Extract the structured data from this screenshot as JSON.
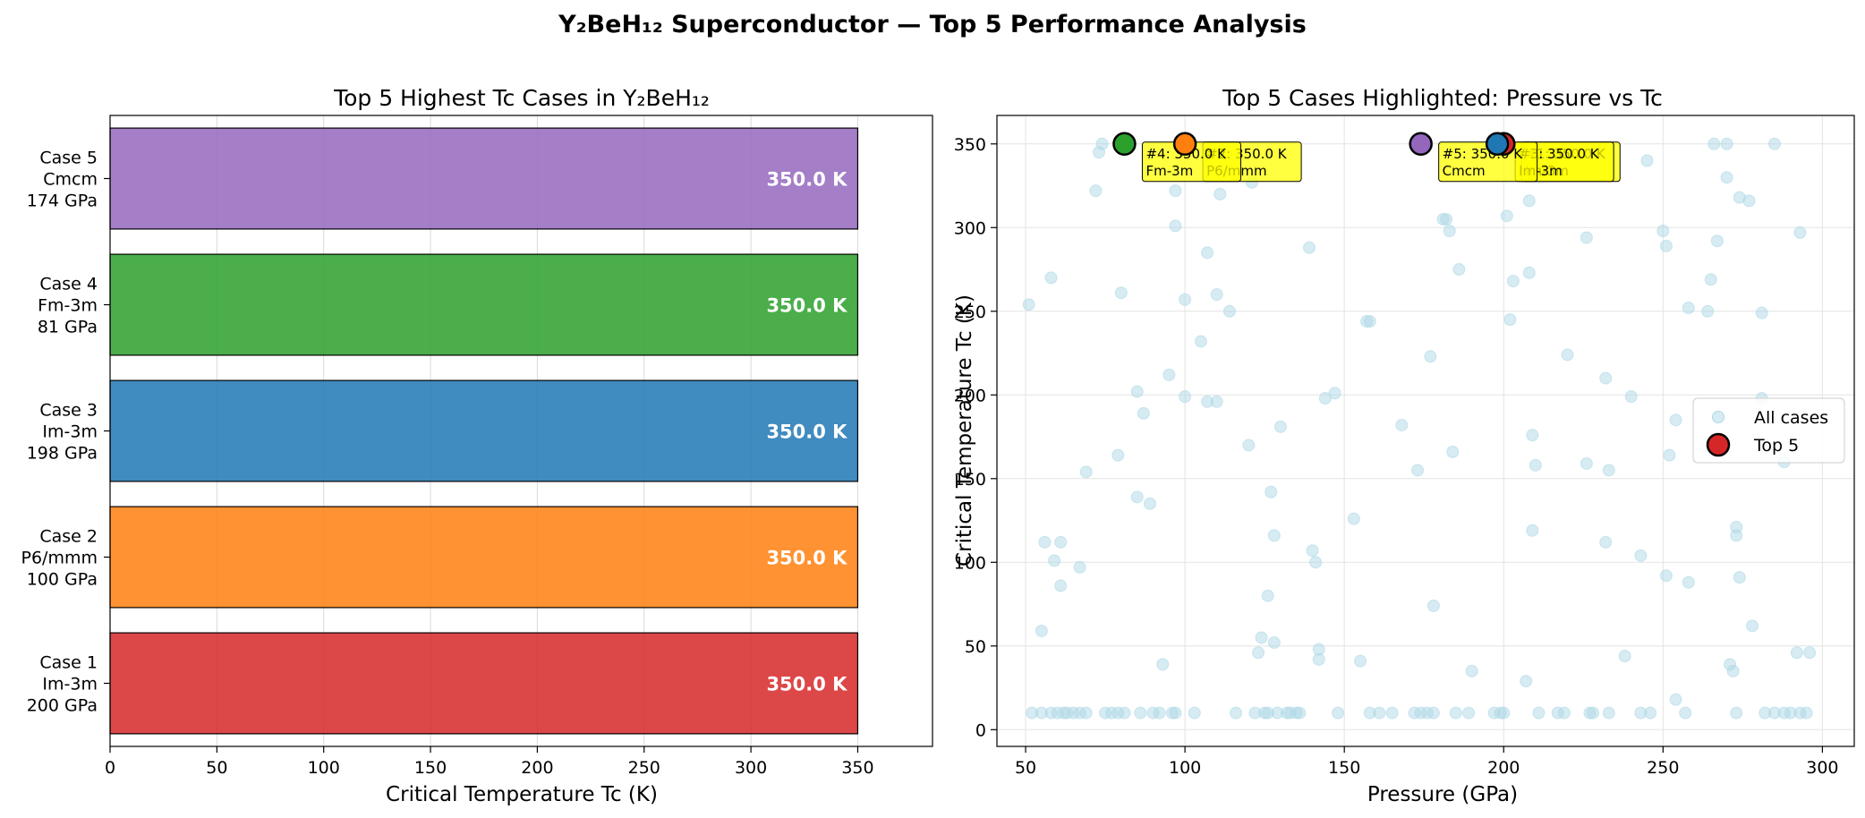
{
  "figure_title": "Y₂BeH₁₂ Superconductor — Top 5 Performance Analysis",
  "chart_data": [
    {
      "type": "bar",
      "orientation": "horizontal",
      "title": "Top 5 Highest Tc Cases in Y₂BeH₁₂",
      "xlabel": "Critical Temperature Tc (K)",
      "ylabel": "",
      "xlim": [
        0,
        385
      ],
      "xticks": [
        0,
        50,
        100,
        150,
        200,
        250,
        300,
        350
      ],
      "grid": "x",
      "categories": [
        [
          "Case 1",
          "Im-3m",
          "200 GPa"
        ],
        [
          "Case 2",
          "P6/mmm",
          "100 GPa"
        ],
        [
          "Case 3",
          "Im-3m",
          "198 GPa"
        ],
        [
          "Case 4",
          "Fm-3m",
          "81 GPa"
        ],
        [
          "Case 5",
          "Cmcm",
          "174 GPa"
        ]
      ],
      "values": [
        350.0,
        350.0,
        350.0,
        350.0,
        350.0
      ],
      "value_labels": [
        "350.0 K",
        "350.0 K",
        "350.0 K",
        "350.0 K",
        "350.0 K"
      ],
      "colors": [
        "#d62728",
        "#ff7f0e",
        "#1f77b4",
        "#2ca02c",
        "#9467bd"
      ]
    },
    {
      "type": "scatter",
      "title": "Top 5 Cases Highlighted: Pressure vs Tc",
      "xlabel": "Pressure (GPa)",
      "ylabel": "Critical Temperature Tc (K)",
      "xlim": [
        41,
        310
      ],
      "ylim": [
        -10,
        367
      ],
      "xticks": [
        50,
        100,
        150,
        200,
        250,
        300
      ],
      "yticks": [
        0,
        50,
        100,
        150,
        200,
        250,
        300,
        350
      ],
      "grid": true,
      "legend_position": "center-right",
      "series": [
        {
          "name": "All cases",
          "color": "#add8e6",
          "points": [
            [
              51,
              254
            ],
            [
              55,
              59
            ],
            [
              56,
              112
            ],
            [
              58,
              270
            ],
            [
              59,
              101
            ],
            [
              61,
              86
            ],
            [
              61,
              112
            ],
            [
              67,
              97
            ],
            [
              69,
              154
            ],
            [
              72,
              322
            ],
            [
              73,
              345
            ],
            [
              74,
              350
            ],
            [
              79,
              164
            ],
            [
              80,
              261
            ],
            [
              85,
              139
            ],
            [
              85,
              202
            ],
            [
              87,
              189
            ],
            [
              89,
              135
            ],
            [
              93,
              39
            ],
            [
              95,
              212
            ],
            [
              97,
              301
            ],
            [
              97,
              322
            ],
            [
              100,
              199
            ],
            [
              100,
              257
            ],
            [
              105,
              232
            ],
            [
              107,
              196
            ],
            [
              107,
              285
            ],
            [
              110,
              196
            ],
            [
              110,
              260
            ],
            [
              111,
              320
            ],
            [
              114,
              250
            ],
            [
              120,
              170
            ],
            [
              121,
              327
            ],
            [
              123,
              46
            ],
            [
              124,
              55
            ],
            [
              126,
              80
            ],
            [
              127,
              142
            ],
            [
              128,
              116
            ],
            [
              128,
              52
            ],
            [
              130,
              181
            ],
            [
              139,
              288
            ],
            [
              140,
              107
            ],
            [
              141,
              100
            ],
            [
              142,
              42
            ],
            [
              142,
              48
            ],
            [
              144,
              198
            ],
            [
              147,
              201
            ],
            [
              153,
              126
            ],
            [
              155,
              41
            ],
            [
              157,
              244
            ],
            [
              158,
              244
            ],
            [
              168,
              182
            ],
            [
              173,
              155
            ],
            [
              177,
              223
            ],
            [
              178,
              74
            ],
            [
              181,
              305
            ],
            [
              182,
              305
            ],
            [
              183,
              298
            ],
            [
              184,
              166
            ],
            [
              186,
              275
            ],
            [
              190,
              35
            ],
            [
              201,
              307
            ],
            [
              202,
              245
            ],
            [
              203,
              268
            ],
            [
              207,
              29
            ],
            [
              208,
              316
            ],
            [
              208,
              273
            ],
            [
              209,
              119
            ],
            [
              209,
              176
            ],
            [
              210,
              158
            ],
            [
              220,
              224
            ],
            [
              226,
              294
            ],
            [
              226,
              159
            ],
            [
              229,
              344
            ],
            [
              232,
              210
            ],
            [
              232,
              112
            ],
            [
              233,
              155
            ],
            [
              238,
              44
            ],
            [
              240,
              199
            ],
            [
              243,
              104
            ],
            [
              245,
              340
            ],
            [
              250,
              298
            ],
            [
              251,
              92
            ],
            [
              251,
              289
            ],
            [
              252,
              164
            ],
            [
              254,
              18
            ],
            [
              254,
              185
            ],
            [
              258,
              88
            ],
            [
              258,
              252
            ],
            [
              264,
              250
            ],
            [
              265,
              269
            ],
            [
              266,
              350
            ],
            [
              267,
              292
            ],
            [
              270,
              350
            ],
            [
              270,
              330
            ],
            [
              271,
              39
            ],
            [
              272,
              35
            ],
            [
              273,
              121
            ],
            [
              273,
              116
            ],
            [
              274,
              91
            ],
            [
              274,
              318
            ],
            [
              277,
              316
            ],
            [
              278,
              62
            ],
            [
              281,
              198
            ],
            [
              281,
              249
            ],
            [
              285,
              350
            ],
            [
              288,
              160
            ],
            [
              292,
              46
            ],
            [
              293,
              297
            ],
            [
              296,
              46
            ],
            [
              52,
              10
            ],
            [
              55,
              10
            ],
            [
              58,
              10
            ],
            [
              60,
              10
            ],
            [
              62,
              10
            ],
            [
              63,
              10
            ],
            [
              65,
              10
            ],
            [
              67,
              10
            ],
            [
              69,
              10
            ],
            [
              75,
              10
            ],
            [
              77,
              10
            ],
            [
              79,
              10
            ],
            [
              81,
              10
            ],
            [
              86,
              10
            ],
            [
              90,
              10
            ],
            [
              92,
              10
            ],
            [
              96,
              10
            ],
            [
              97,
              10
            ],
            [
              103,
              10
            ],
            [
              116,
              10
            ],
            [
              122,
              10
            ],
            [
              125,
              10
            ],
            [
              126,
              10
            ],
            [
              129,
              10
            ],
            [
              132,
              10
            ],
            [
              133,
              10
            ],
            [
              135,
              10
            ],
            [
              136,
              10
            ],
            [
              148,
              10
            ],
            [
              158,
              10
            ],
            [
              161,
              10
            ],
            [
              165,
              10
            ],
            [
              172,
              10
            ],
            [
              174,
              10
            ],
            [
              176,
              10
            ],
            [
              178,
              10
            ],
            [
              185,
              10
            ],
            [
              189,
              10
            ],
            [
              197,
              10
            ],
            [
              199,
              10
            ],
            [
              200,
              10
            ],
            [
              211,
              10
            ],
            [
              217,
              10
            ],
            [
              219,
              10
            ],
            [
              227,
              10
            ],
            [
              228,
              10
            ],
            [
              233,
              10
            ],
            [
              243,
              10
            ],
            [
              246,
              10
            ],
            [
              257,
              10
            ],
            [
              273,
              10
            ],
            [
              282,
              10
            ],
            [
              285,
              10
            ],
            [
              288,
              10
            ],
            [
              290,
              10
            ],
            [
              293,
              10
            ],
            [
              295,
              10
            ]
          ]
        },
        {
          "name": "Top 5",
          "points": [
            {
              "x": 200,
              "y": 350,
              "color": "#d62728"
            },
            {
              "x": 100,
              "y": 350,
              "color": "#ff7f0e"
            },
            {
              "x": 198,
              "y": 350,
              "color": "#1f77b4"
            },
            {
              "x": 81,
              "y": 350,
              "color": "#2ca02c"
            },
            {
              "x": 174,
              "y": 350,
              "color": "#9467bd"
            }
          ]
        }
      ],
      "annotations": [
        {
          "x": 200,
          "y": 350,
          "lines": [
            "#1: 350.0 K",
            "Im-3m"
          ]
        },
        {
          "x": 100,
          "y": 350,
          "lines": [
            "#2: 350.0 K",
            "P6/mmm"
          ]
        },
        {
          "x": 198,
          "y": 350,
          "lines": [
            "#3: 350.0 K",
            "Im-3m"
          ]
        },
        {
          "x": 81,
          "y": 350,
          "lines": [
            "#4: 350.0 K",
            "Fm-3m"
          ]
        },
        {
          "x": 174,
          "y": 350,
          "lines": [
            "#5: 350.0 K",
            "Cmcm"
          ]
        }
      ],
      "legend": [
        "All cases",
        "Top 5"
      ],
      "legend_top5_color": "#d62728"
    }
  ]
}
